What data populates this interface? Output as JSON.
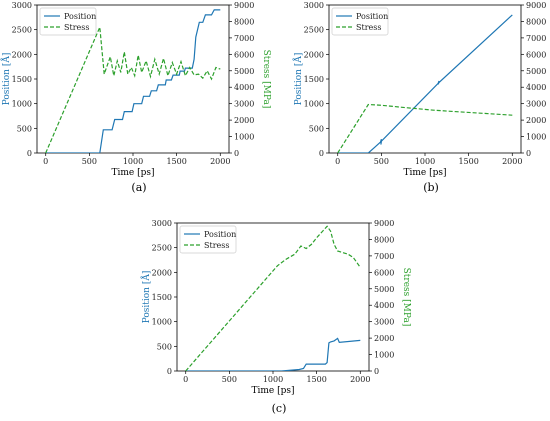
{
  "chart_data": [
    {
      "type": "line",
      "caption": "(a)",
      "xlabel": "Time [ps]",
      "ylabel_left": "Position [Å]",
      "ylabel_right": "Stress [MPa]",
      "xlim": [
        -100,
        2100
      ],
      "ylim_left": [
        0,
        3000
      ],
      "ylim_right": [
        0,
        9000
      ],
      "xticks": [
        0,
        500,
        1000,
        1500,
        2000
      ],
      "yticks_left": [
        0,
        500,
        1000,
        1500,
        2000,
        2500,
        3000
      ],
      "yticks_right": [
        0,
        1000,
        2000,
        3000,
        4000,
        5000,
        6000,
        7000,
        8000,
        9000
      ],
      "legend": "top-left",
      "series": [
        {
          "name": "Position",
          "axis": "left",
          "color": "#1f77b4",
          "style": "solid",
          "x": [
            0,
            620,
            660,
            760,
            790,
            880,
            900,
            990,
            1010,
            1100,
            1120,
            1190,
            1210,
            1270,
            1290,
            1370,
            1380,
            1440,
            1460,
            1530,
            1540,
            1590,
            1600,
            1680,
            1700,
            1720,
            1760,
            1800,
            1830,
            1900,
            1930,
            2000
          ],
          "y": [
            0,
            0,
            470,
            470,
            680,
            680,
            840,
            840,
            1000,
            1000,
            1150,
            1150,
            1260,
            1260,
            1380,
            1380,
            1480,
            1480,
            1580,
            1580,
            1660,
            1660,
            1720,
            1720,
            1900,
            2350,
            2650,
            2650,
            2800,
            2800,
            2900,
            2900
          ]
        },
        {
          "name": "Stress",
          "axis": "right",
          "color": "#2ca02c",
          "style": "dashed",
          "x": [
            0,
            620,
            670,
            740,
            780,
            820,
            860,
            900,
            940,
            980,
            1020,
            1060,
            1100,
            1150,
            1200,
            1250,
            1300,
            1350,
            1400,
            1450,
            1500,
            1550,
            1600,
            1650,
            1700,
            1750,
            1800,
            1850,
            1900,
            1950,
            2000
          ],
          "y": [
            0,
            7650,
            4800,
            5850,
            4700,
            5600,
            4900,
            6150,
            4800,
            5200,
            4700,
            5950,
            4900,
            5600,
            4650,
            5700,
            4800,
            5750,
            4700,
            5500,
            4800,
            5550,
            4700,
            5200,
            4750,
            4800,
            4550,
            5000,
            4500,
            5200,
            5100
          ]
        }
      ]
    },
    {
      "type": "line",
      "caption": "(b)",
      "xlabel": "Time [ps]",
      "ylabel_left": "Position [Å]",
      "ylabel_right": "Stress [MPa]",
      "xlim": [
        -100,
        2100
      ],
      "ylim_left": [
        0,
        3000
      ],
      "ylim_right": [
        0,
        9000
      ],
      "xticks": [
        0,
        500,
        1000,
        1500,
        2000
      ],
      "yticks_left": [
        0,
        500,
        1000,
        1500,
        2000,
        2500,
        3000
      ],
      "yticks_right": [
        0,
        1000,
        2000,
        3000,
        4000,
        5000,
        6000,
        7000,
        8000,
        9000
      ],
      "legend": "top-left",
      "series": [
        {
          "name": "Position",
          "axis": "left",
          "color": "#1f77b4",
          "style": "solid",
          "x": [
            0,
            350,
            420,
            490,
            500,
            495,
            500,
            1150,
            1160,
            1150,
            1160,
            2000
          ],
          "y": [
            0,
            0,
            110,
            220,
            280,
            170,
            240,
            1410,
            1460,
            1390,
            1430,
            2800
          ]
        },
        {
          "name": "Stress",
          "axis": "right",
          "color": "#2ca02c",
          "style": "dashed",
          "x": [
            0,
            350,
            500,
            800,
            1100,
            1400,
            1700,
            2000
          ],
          "y": [
            0,
            2950,
            2900,
            2750,
            2600,
            2500,
            2400,
            2300
          ]
        }
      ]
    },
    {
      "type": "line",
      "caption": "(c)",
      "xlabel": "Time [ps]",
      "ylabel_left": "Position [Å]",
      "ylabel_right": "Stress [MPa]",
      "xlim": [
        -100,
        2100
      ],
      "ylim_left": [
        0,
        3000
      ],
      "ylim_right": [
        0,
        9000
      ],
      "xticks": [
        0,
        500,
        1000,
        1500,
        2000
      ],
      "yticks_left": [
        0,
        500,
        1000,
        1500,
        2000,
        2500,
        3000
      ],
      "yticks_right": [
        0,
        1000,
        2000,
        3000,
        4000,
        5000,
        6000,
        7000,
        8000,
        9000
      ],
      "legend": "top-left",
      "series": [
        {
          "name": "Position",
          "axis": "left",
          "color": "#1f77b4",
          "style": "solid",
          "x": [
            0,
            1100,
            1300,
            1350,
            1380,
            1600,
            1620,
            1640,
            1660,
            1700,
            1740,
            1760,
            2000
          ],
          "y": [
            0,
            0,
            30,
            50,
            140,
            140,
            170,
            570,
            590,
            610,
            660,
            580,
            620
          ]
        },
        {
          "name": "Stress",
          "axis": "right",
          "color": "#2ca02c",
          "style": "dashed",
          "x": [
            0,
            1050,
            1150,
            1250,
            1320,
            1380,
            1440,
            1500,
            1560,
            1620,
            1660,
            1700,
            1740,
            1800,
            1860,
            1920,
            2000
          ],
          "y": [
            0,
            6400,
            6800,
            7100,
            7600,
            7450,
            7700,
            8100,
            8450,
            8800,
            8500,
            7700,
            7300,
            7200,
            7100,
            6900,
            6300
          ]
        }
      ]
    }
  ]
}
